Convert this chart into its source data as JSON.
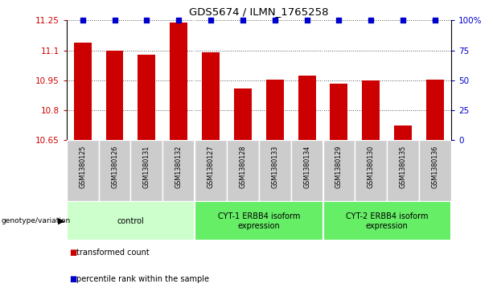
{
  "title": "GDS5674 / ILMN_1765258",
  "samples": [
    "GSM1380125",
    "GSM1380126",
    "GSM1380131",
    "GSM1380132",
    "GSM1380127",
    "GSM1380128",
    "GSM1380133",
    "GSM1380134",
    "GSM1380129",
    "GSM1380130",
    "GSM1380135",
    "GSM1380136"
  ],
  "bar_values": [
    11.14,
    11.1,
    11.08,
    11.24,
    11.09,
    10.91,
    10.955,
    10.975,
    10.935,
    10.95,
    10.725,
    10.955
  ],
  "percentile_values": [
    100,
    100,
    100,
    100,
    100,
    100,
    100,
    100,
    100,
    100,
    100,
    100
  ],
  "bar_color": "#cc0000",
  "percentile_color": "#0000cc",
  "ylim_left": [
    10.65,
    11.25
  ],
  "ylim_right": [
    0,
    100
  ],
  "yticks_left": [
    10.65,
    10.8,
    10.95,
    11.1,
    11.25
  ],
  "ytick_labels_left": [
    "10.65",
    "10.8",
    "10.95",
    "11.1",
    "11.25"
  ],
  "yticks_right": [
    0,
    25,
    50,
    75,
    100
  ],
  "ytick_labels_right": [
    "0",
    "25",
    "50",
    "75",
    "100%"
  ],
  "groups": [
    {
      "label": "control",
      "start": 0,
      "end": 3,
      "color": "#ccffcc"
    },
    {
      "label": "CYT-1 ERBB4 isoform\nexpression",
      "start": 4,
      "end": 7,
      "color": "#66ee66"
    },
    {
      "label": "CYT-2 ERBB4 isoform\nexpression",
      "start": 8,
      "end": 11,
      "color": "#66ee66"
    }
  ],
  "genotype_label": "genotype/variation",
  "legend_bar_label": "transformed count",
  "legend_pct_label": "percentile rank within the sample",
  "grid_color": "#555555",
  "background_color": "#ffffff",
  "xticklabel_bg": "#cccccc",
  "group_dividers": [
    3.5,
    7.5
  ]
}
